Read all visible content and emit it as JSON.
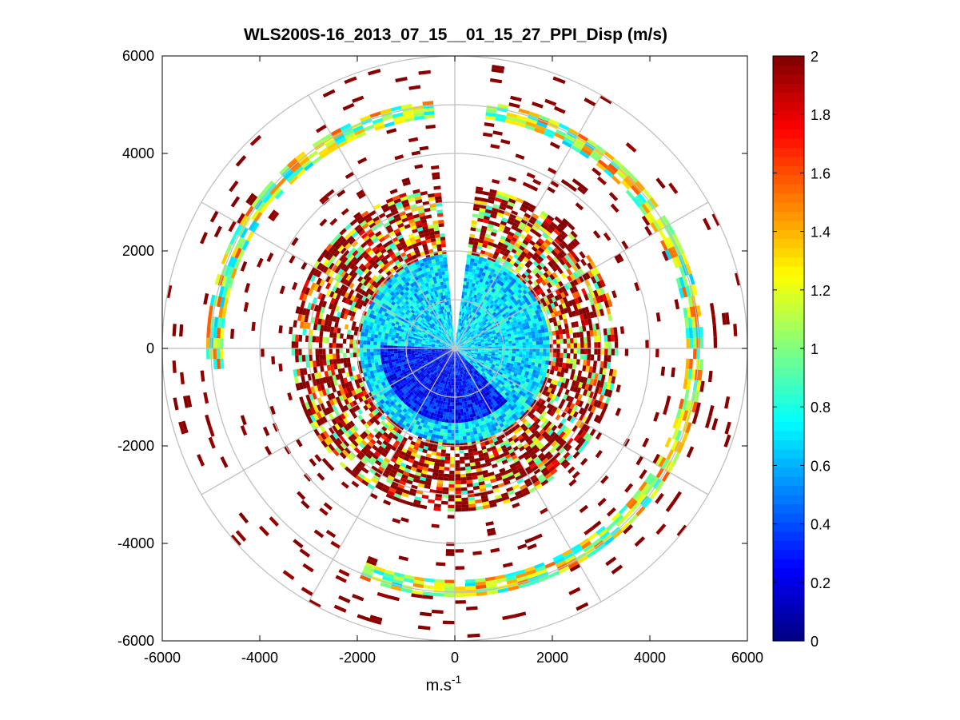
{
  "chart_data": {
    "type": "heatmap",
    "subtype": "polar-ppi",
    "title": "WLS200S-16_2013_07_15__01_15_27_PPI_Disp (m/s)",
    "xlabel": "m.s",
    "xlabel_superscript": "-1",
    "ylabel": "",
    "xlim": [
      -6000,
      6000
    ],
    "ylim": [
      -6000,
      6000
    ],
    "xticks": [
      -6000,
      -4000,
      -2000,
      0,
      2000,
      4000,
      6000
    ],
    "yticks": [
      6000,
      4000,
      2000,
      0,
      -2000,
      -4000,
      -6000
    ],
    "xtick_labels": [
      "-6000",
      "-4000",
      "-2000",
      "0",
      "2000",
      "4000",
      "6000"
    ],
    "ytick_labels": [
      "6000",
      "4000",
      "2000",
      "0",
      "-2000",
      "-4000",
      "-6000"
    ],
    "polar_grid": {
      "ring_radii": [
        1000,
        2000,
        3000,
        4000,
        5000,
        6000
      ],
      "spoke_angles_deg": [
        0,
        30,
        60,
        90,
        120,
        150,
        180,
        210,
        240,
        270,
        300,
        330
      ]
    },
    "colorbar": {
      "colormap": "jet",
      "range": [
        0,
        2
      ],
      "ticks": [
        0,
        0.2,
        0.4,
        0.6,
        0.8,
        1,
        1.2,
        1.4,
        1.6,
        1.8,
        2
      ],
      "tick_labels": [
        "0",
        "0.2",
        "0.4",
        "0.6",
        "0.8",
        "1",
        "1.2",
        "1.4",
        "1.6",
        "1.8",
        "2"
      ]
    },
    "data_description": {
      "gap_sector_deg": [
        -5,
        5
      ],
      "zones": [
        {
          "r_range": [
            0,
            1500
          ],
          "azimuth_range_deg": [
            180,
            315
          ],
          "value_range": [
            0.1,
            0.45
          ]
        },
        {
          "r_range": [
            0,
            2000
          ],
          "azimuth_range_deg": [
            0,
            360
          ],
          "value_range": [
            0.45,
            0.9
          ]
        },
        {
          "r_range": [
            1900,
            3300
          ],
          "azimuth_range_deg": [
            0,
            360
          ],
          "value_range": [
            0.8,
            2.0
          ]
        },
        {
          "r_range": [
            4750,
            5050
          ],
          "azimuth_range_deg": [
            0,
            360
          ],
          "value_range": [
            0.65,
            1.6
          ],
          "note": "arc band"
        },
        {
          "r_range": [
            3300,
            6000
          ],
          "azimuth_range_deg": [
            0,
            360
          ],
          "value_range": [
            1.9,
            2.0
          ],
          "note": "sparse cells"
        }
      ]
    }
  }
}
